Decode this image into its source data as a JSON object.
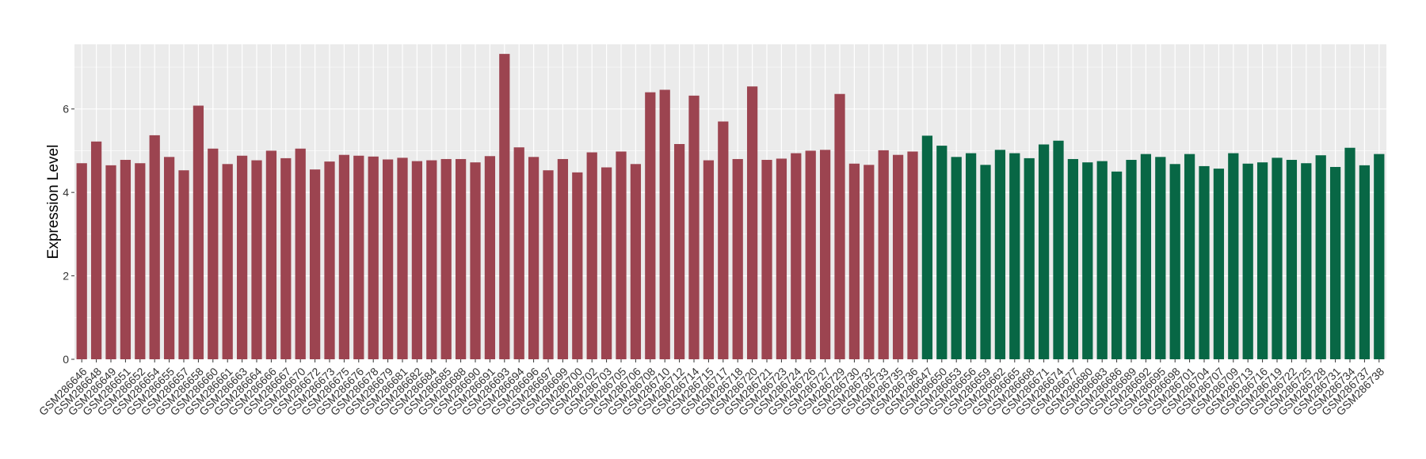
{
  "chart_data": {
    "type": "bar",
    "title": "",
    "xlabel": "",
    "ylabel": "Expression Level",
    "ylim": [
      0,
      7.55
    ],
    "yticks": [
      0,
      2,
      4,
      6
    ],
    "grid": true,
    "legend": "none",
    "colors": {
      "panel_background": "#EBEBEB",
      "grid": "#FFFFFF",
      "group_1": "#9C4450",
      "group_2": "#086745"
    },
    "categories": [
      "GSM286646",
      "GSM286648",
      "GSM286649",
      "GSM286651",
      "GSM286652",
      "GSM286654",
      "GSM286655",
      "GSM286657",
      "GSM286658",
      "GSM286660",
      "GSM286661",
      "GSM286663",
      "GSM286664",
      "GSM286666",
      "GSM286667",
      "GSM286670",
      "GSM286672",
      "GSM286673",
      "GSM286675",
      "GSM286676",
      "GSM286678",
      "GSM286679",
      "GSM286681",
      "GSM286682",
      "GSM286684",
      "GSM286685",
      "GSM286688",
      "GSM286690",
      "GSM286691",
      "GSM286693",
      "GSM286694",
      "GSM286696",
      "GSM286697",
      "GSM286699",
      "GSM286700",
      "GSM286702",
      "GSM286703",
      "GSM286705",
      "GSM286706",
      "GSM286708",
      "GSM286710",
      "GSM286712",
      "GSM286714",
      "GSM286715",
      "GSM286717",
      "GSM286718",
      "GSM286720",
      "GSM286721",
      "GSM286723",
      "GSM286724",
      "GSM286726",
      "GSM286727",
      "GSM286729",
      "GSM286730",
      "GSM286732",
      "GSM286733",
      "GSM286735",
      "GSM286736",
      "GSM286647",
      "GSM286650",
      "GSM286653",
      "GSM286656",
      "GSM286659",
      "GSM286662",
      "GSM286665",
      "GSM286668",
      "GSM286671",
      "GSM286674",
      "GSM286677",
      "GSM286680",
      "GSM286683",
      "GSM286686",
      "GSM286689",
      "GSM286692",
      "GSM286695",
      "GSM286698",
      "GSM286701",
      "GSM286704",
      "GSM286707",
      "GSM286709",
      "GSM286713",
      "GSM286716",
      "GSM286719",
      "GSM286722",
      "GSM286725",
      "GSM286728",
      "GSM286731",
      "GSM286734",
      "GSM286737",
      "GSM286738"
    ],
    "values": [
      4.7,
      5.22,
      4.65,
      4.78,
      4.7,
      5.37,
      4.85,
      4.53,
      6.08,
      5.05,
      4.68,
      4.88,
      4.77,
      5.0,
      4.82,
      5.05,
      4.55,
      4.74,
      4.9,
      4.88,
      4.86,
      4.79,
      4.83,
      4.75,
      4.77,
      4.8,
      4.8,
      4.72,
      4.87,
      7.32,
      5.08,
      4.85,
      4.53,
      4.8,
      4.48,
      4.96,
      4.6,
      4.98,
      4.68,
      6.4,
      6.46,
      5.16,
      6.32,
      4.77,
      5.7,
      4.8,
      6.54,
      4.78,
      4.81,
      4.94,
      5.0,
      5.02,
      6.36,
      4.69,
      4.66,
      5.01,
      4.9,
      4.98,
      5.36,
      5.12,
      4.85,
      4.94,
      4.66,
      5.02,
      4.94,
      4.82,
      5.15,
      5.24,
      4.8,
      4.72,
      4.75,
      4.5,
      4.78,
      4.92,
      4.85,
      4.68,
      4.92,
      4.63,
      4.57,
      4.94,
      4.69,
      4.72,
      4.83,
      4.78,
      4.7,
      4.89,
      4.61,
      5.07,
      4.65,
      4.92
    ],
    "groups": [
      1,
      1,
      1,
      1,
      1,
      1,
      1,
      1,
      1,
      1,
      1,
      1,
      1,
      1,
      1,
      1,
      1,
      1,
      1,
      1,
      1,
      1,
      1,
      1,
      1,
      1,
      1,
      1,
      1,
      1,
      1,
      1,
      1,
      1,
      1,
      1,
      1,
      1,
      1,
      1,
      1,
      1,
      1,
      1,
      1,
      1,
      1,
      1,
      1,
      1,
      1,
      1,
      1,
      1,
      1,
      1,
      1,
      1,
      2,
      2,
      2,
      2,
      2,
      2,
      2,
      2,
      2,
      2,
      2,
      2,
      2,
      2,
      2,
      2,
      2,
      2,
      2,
      2,
      2,
      2,
      2,
      2,
      2,
      2,
      2,
      2,
      2,
      2,
      2,
      2
    ]
  }
}
